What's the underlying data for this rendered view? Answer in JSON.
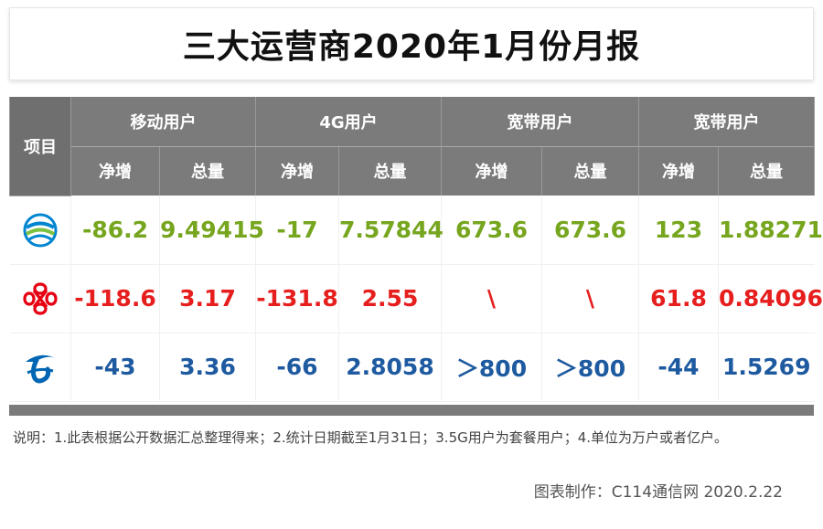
{
  "title": "三大运营商2020年1月份月报",
  "header": {
    "item": "项目",
    "groups": [
      "移动用户",
      "4G用户",
      "宽带用户",
      "宽带用户"
    ],
    "sub": [
      "净增",
      "总量",
      "净增",
      "总量",
      "净增",
      "总量",
      "净增",
      "总量"
    ]
  },
  "rows": [
    {
      "operator_icon": "china-mobile-logo-icon",
      "color": "#76a51e",
      "cells": [
        "-86.2",
        "9.49415",
        "-17",
        "7.57844",
        "673.6",
        "673.6",
        "123",
        "1.88271"
      ]
    },
    {
      "operator_icon": "china-unicom-logo-icon",
      "color": "#e61e1e",
      "cells": [
        "-118.6",
        "3.17",
        "-131.8",
        "2.55",
        "\\",
        "\\",
        "61.8",
        "0.84096"
      ]
    },
    {
      "operator_icon": "china-telecom-logo-icon",
      "color": "#1e5aa0",
      "cells": [
        "-43",
        "3.36",
        "-66",
        "2.8058",
        "＞800",
        "＞800",
        "-44",
        "1.5269"
      ]
    }
  ],
  "note": "说明：1.此表根据公开数据汇总整理得来；2.统计日期截至1月31日；3.5G用户为套餐用户；4.单位为万户或者亿户。",
  "credit": "图表制作：C114通信网  2020.2.22",
  "chart_data": {
    "type": "table",
    "title": "三大运营商2020年1月份月报",
    "columns": [
      "项目",
      "移动用户-净增",
      "移动用户-总量",
      "4G用户-净增",
      "4G用户-总量",
      "宽带用户-净增",
      "宽带用户-总量",
      "宽带用户-净增",
      "宽带用户-总量"
    ],
    "rows": [
      [
        "china-mobile-logo-icon",
        "-86.2",
        "9.49415",
        "-17",
        "7.57844",
        "673.6",
        "673.6",
        "123",
        "1.88271"
      ],
      [
        "china-unicom-logo-icon",
        "-118.6",
        "3.17",
        "-131.8",
        "2.55",
        "\\",
        "\\",
        "61.8",
        "0.84096"
      ],
      [
        "china-telecom-logo-icon",
        "-43",
        "3.36",
        "-66",
        "2.8058",
        "＞800",
        "＞800",
        "-44",
        "1.5269"
      ]
    ]
  }
}
